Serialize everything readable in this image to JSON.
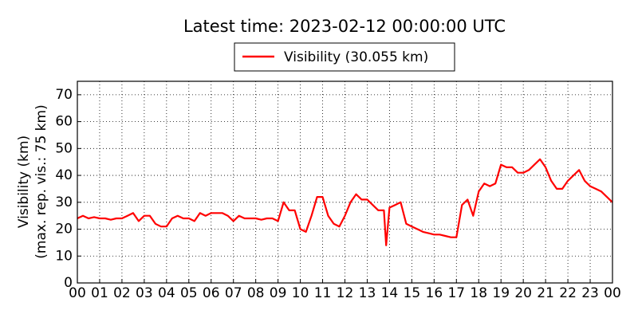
{
  "chart_data": {
    "type": "line",
    "title": "Latest time: 2023-02-12 00:00:00 UTC",
    "ylabel": [
      "Visibility (km)",
      "(max. rep. vis.: 75 km)"
    ],
    "x": [
      0,
      0.25,
      0.5,
      0.75,
      1,
      1.25,
      1.5,
      1.75,
      2,
      2.25,
      2.5,
      2.75,
      3,
      3.25,
      3.5,
      3.75,
      4,
      4.25,
      4.5,
      4.75,
      5,
      5.25,
      5.5,
      5.75,
      6,
      6.25,
      6.5,
      6.75,
      7,
      7.25,
      7.5,
      7.75,
      8,
      8.25,
      8.5,
      8.75,
      9,
      9.25,
      9.5,
      9.75,
      10,
      10.25,
      10.5,
      10.75,
      11,
      11.25,
      11.5,
      11.75,
      12,
      12.25,
      12.5,
      12.75,
      13,
      13.25,
      13.5,
      13.75,
      13.85,
      14,
      14.25,
      14.5,
      14.75,
      15,
      15.25,
      15.5,
      15.75,
      16,
      16.25,
      16.5,
      16.75,
      17,
      17.25,
      17.5,
      17.75,
      18,
      18.25,
      18.5,
      18.75,
      19,
      19.25,
      19.5,
      19.75,
      20,
      20.25,
      20.5,
      20.75,
      21,
      21.25,
      21.5,
      21.75,
      22,
      22.25,
      22.5,
      22.75,
      23,
      23.25,
      23.5,
      23.75,
      24
    ],
    "series": [
      {
        "name": "Visibility (30.055 km)",
        "color": "#ff0000",
        "values": [
          24,
          25,
          24,
          24.5,
          24,
          24,
          23.5,
          24,
          24,
          25,
          26,
          23,
          25,
          25,
          22,
          21,
          21,
          24,
          25,
          24,
          24,
          23,
          26,
          25,
          26,
          26,
          26,
          25,
          23,
          25,
          24,
          24,
          24,
          23.5,
          24,
          24,
          23,
          30,
          27,
          27,
          20,
          19,
          25,
          32,
          32,
          25,
          22,
          21,
          25,
          30,
          33,
          31,
          31,
          29,
          27,
          27,
          14,
          28,
          29,
          30,
          22,
          21,
          20,
          19,
          18.5,
          18,
          18,
          17.5,
          17,
          17,
          29,
          31,
          25,
          34,
          37,
          36,
          37,
          44,
          43,
          43,
          41,
          41,
          42,
          44,
          46,
          43,
          38,
          35,
          35,
          38,
          40,
          42,
          38,
          36,
          35,
          34,
          32,
          30
        ]
      }
    ],
    "xlim": [
      0,
      24
    ],
    "xticks": [
      {
        "value": 0,
        "label": "00"
      },
      {
        "value": 1,
        "label": "01"
      },
      {
        "value": 2,
        "label": "02"
      },
      {
        "value": 3,
        "label": "03"
      },
      {
        "value": 4,
        "label": "04"
      },
      {
        "value": 5,
        "label": "05"
      },
      {
        "value": 6,
        "label": "06"
      },
      {
        "value": 7,
        "label": "07"
      },
      {
        "value": 8,
        "label": "08"
      },
      {
        "value": 9,
        "label": "09"
      },
      {
        "value": 10,
        "label": "10"
      },
      {
        "value": 11,
        "label": "11"
      },
      {
        "value": 12,
        "label": "12"
      },
      {
        "value": 13,
        "label": "13"
      },
      {
        "value": 14,
        "label": "14"
      },
      {
        "value": 15,
        "label": "15"
      },
      {
        "value": 16,
        "label": "16"
      },
      {
        "value": 17,
        "label": "17"
      },
      {
        "value": 18,
        "label": "18"
      },
      {
        "value": 19,
        "label": "19"
      },
      {
        "value": 20,
        "label": "20"
      },
      {
        "value": 21,
        "label": "21"
      },
      {
        "value": 22,
        "label": "22"
      },
      {
        "value": 23,
        "label": "23"
      },
      {
        "value": 24,
        "label": "00"
      }
    ],
    "ylim": [
      0,
      75
    ],
    "yticks": [
      0,
      10,
      20,
      30,
      40,
      50,
      60,
      70
    ],
    "grid": true,
    "legend": "top"
  }
}
